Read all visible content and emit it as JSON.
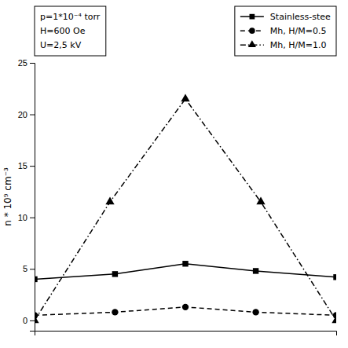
{
  "chart_data": {
    "type": "line",
    "ylabel": "n * 10⁹ cm⁻³",
    "xlim": [
      -1.5,
      1.5
    ],
    "ylim": [
      -1,
      25
    ],
    "yticks": [
      0,
      5,
      10,
      15,
      20,
      25
    ],
    "tick_labels": "y",
    "grid": false,
    "legend": "upper right",
    "annotations": [
      "p=1*10⁻⁴ torr",
      "H=600 Oe",
      "U=2,5 kV"
    ],
    "series": [
      {
        "name": "Stainless-stee",
        "color": "#000000",
        "marker": "square",
        "line_style": "solid",
        "x": [
          -1.5,
          -0.7,
          0.0,
          0.7,
          1.5
        ],
        "values": [
          4.0,
          4.5,
          5.5,
          4.8,
          4.2
        ]
      },
      {
        "name": "Mh, H/M=0.5",
        "color": "#000000",
        "marker": "circle",
        "line_style": "dashed",
        "x": [
          -1.5,
          -0.7,
          0.0,
          0.7,
          1.5
        ],
        "values": [
          0.5,
          0.8,
          1.3,
          0.8,
          0.5
        ]
      },
      {
        "name": "Mh, H/M=1.0",
        "color": "#000000",
        "marker": "triangle",
        "line_style": "dashdot",
        "x": [
          -1.5,
          -0.75,
          0.0,
          0.75,
          1.5
        ],
        "values": [
          0.0,
          11.5,
          21.5,
          11.5,
          0.0
        ]
      }
    ]
  }
}
